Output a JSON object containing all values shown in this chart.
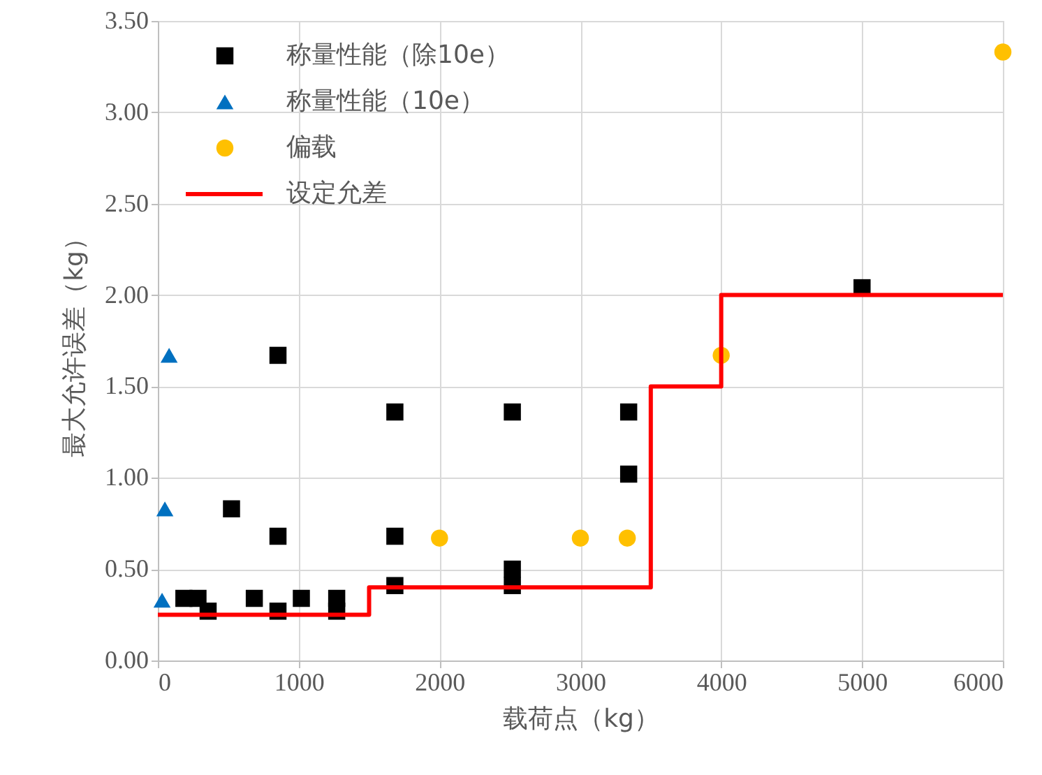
{
  "chart_data": {
    "type": "scatter",
    "xlabel": "载荷点（kg）",
    "ylabel": "最大允许误差（kg）",
    "xlim": [
      0,
      6000
    ],
    "xticks": [
      0,
      1000,
      2000,
      3000,
      4000,
      5000,
      6000
    ],
    "ylim": [
      0,
      3.5
    ],
    "yticks": [
      {
        "value": 0,
        "label": "0.00"
      },
      {
        "value": 0.5,
        "label": "0.50"
      },
      {
        "value": 1,
        "label": "1.00"
      },
      {
        "value": 1.5,
        "label": "1.50"
      },
      {
        "value": 2,
        "label": "2.00"
      },
      {
        "value": 2.5,
        "label": "2.50"
      },
      {
        "value": 3,
        "label": "3.00"
      },
      {
        "value": 3.5,
        "label": "3.50"
      }
    ],
    "grid": true,
    "legend": "top left",
    "series": [
      {
        "name": "称量性能（除10e）",
        "marker": "square",
        "color": "#000000",
        "x": [
          185,
          285,
          357,
          523,
          685,
          853,
          853,
          853,
          1019,
          1270,
          1270,
          1683,
          1683,
          1683,
          2517,
          2517,
          2517,
          3343,
          3343,
          5000
        ],
        "values": [
          0.34,
          0.34,
          0.27,
          0.83,
          0.34,
          0.27,
          0.68,
          1.67,
          0.34,
          0.34,
          0.27,
          0.41,
          0.68,
          1.36,
          0.41,
          0.5,
          1.36,
          1.02,
          1.36,
          2.04
        ]
      },
      {
        "name": "称量性能（10e）",
        "marker": "triangle",
        "color": "#0070c0",
        "x": [
          30,
          50,
          80
        ],
        "values": [
          0.33,
          0.83,
          1.67
        ]
      },
      {
        "name": "偏载",
        "marker": "circle",
        "color": "#ffc000",
        "x": [
          2000,
          3000,
          3333,
          4000,
          6000
        ],
        "values": [
          0.67,
          0.67,
          0.67,
          1.67,
          3.33
        ]
      },
      {
        "name": "设定允差",
        "type": "line",
        "line_style": "solid",
        "color": "#ff0000",
        "x": [
          0,
          1500,
          1500,
          3500,
          3500,
          4000,
          4000,
          6000
        ],
        "values": [
          0.25,
          0.25,
          0.4,
          0.4,
          1.5,
          1.5,
          2.0,
          2.0
        ]
      }
    ]
  }
}
